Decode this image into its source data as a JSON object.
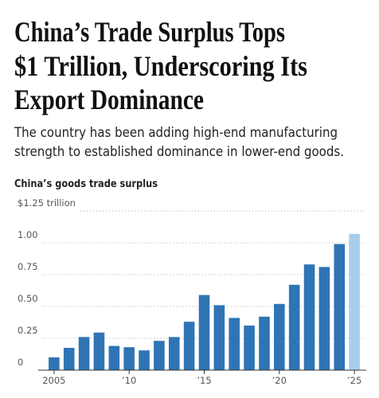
{
  "headline": [
    "China’s Trade Surplus Tops",
    "$1 Trillion, Underscoring Its",
    "Export Dominance"
  ],
  "dek": [
    "The country has been adding high-end manufacturing",
    "strength to established dominance in lower-end goods."
  ],
  "chart_data": {
    "type": "bar",
    "title": "China’s goods trade surplus",
    "x": [
      2005,
      2006,
      2007,
      2008,
      2009,
      2010,
      2011,
      2012,
      2013,
      2014,
      2015,
      2016,
      2017,
      2018,
      2019,
      2020,
      2021,
      2022,
      2023,
      2024,
      2025
    ],
    "values": [
      0.1,
      0.175,
      0.26,
      0.295,
      0.19,
      0.18,
      0.155,
      0.23,
      0.26,
      0.38,
      0.59,
      0.51,
      0.41,
      0.35,
      0.42,
      0.52,
      0.67,
      0.83,
      0.81,
      0.99,
      1.07
    ],
    "colors": [
      "#2f74b5",
      "#2f74b5",
      "#2f74b5",
      "#2f74b5",
      "#2f74b5",
      "#2f74b5",
      "#2f74b5",
      "#2f74b5",
      "#2f74b5",
      "#2f74b5",
      "#2f74b5",
      "#2f74b5",
      "#2f74b5",
      "#2f74b5",
      "#2f74b5",
      "#2f74b5",
      "#2f74b5",
      "#2f74b5",
      "#2f74b5",
      "#2f74b5",
      "#a9cdec"
    ],
    "ylim": [
      0,
      1.25
    ],
    "yticks": [
      0,
      {
        "value": 0.25,
        "label": "0.25"
      },
      {
        "value": 0.5,
        "label": "0.50"
      },
      {
        "value": 0.75,
        "label": "0.75"
      },
      {
        "value": 1,
        "label": "1.00"
      },
      {
        "value": 1.25,
        "label": "$1.25 trillion"
      }
    ],
    "xlim": [
      2004,
      2026
    ],
    "xticks": [
      2005,
      {
        "value": 2010,
        "label": "’10"
      },
      {
        "value": 2015,
        "label": "’15"
      },
      {
        "value": 2020,
        "label": "’20"
      },
      {
        "value": 2025,
        "label": "’25"
      }
    ],
    "grid": true
  }
}
